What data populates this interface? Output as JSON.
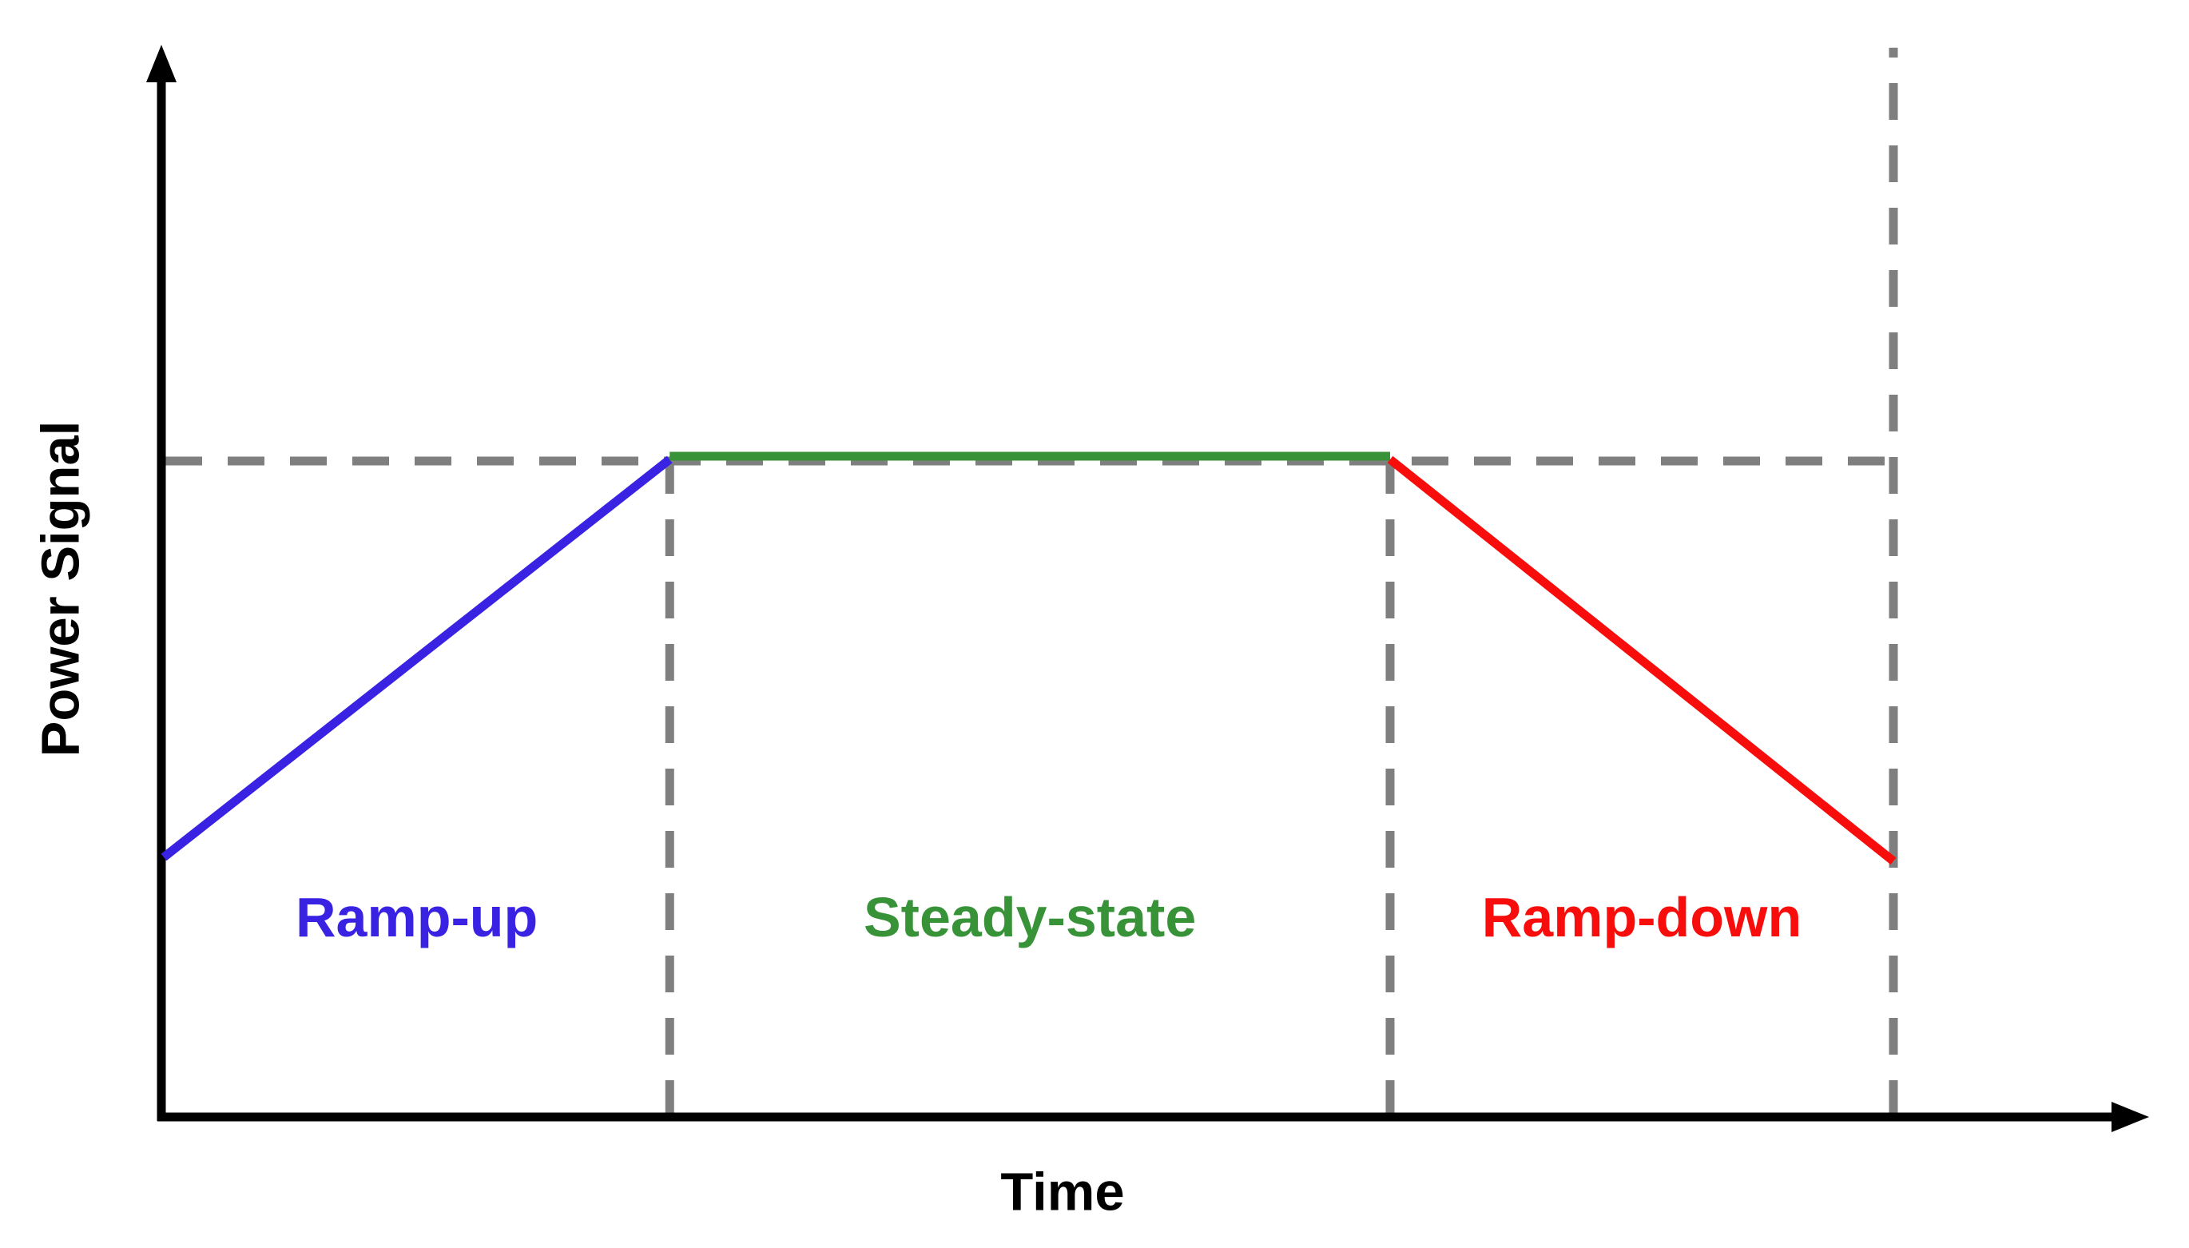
{
  "chart_data": {
    "type": "line",
    "title": "",
    "xlabel": "Time",
    "ylabel": "Power Signal",
    "axis_color": "#000000",
    "guide_color": "#7f7f7f",
    "guide_style": "dashed",
    "tick_labels": "none",
    "background": "#ffffff",
    "axes": {
      "x_arrow": true,
      "y_arrow": true
    },
    "phases": [
      {
        "label": "Ramp-up",
        "color": "#3a22e3",
        "trend": "linear increase",
        "x": [
          0.0,
          0.2925
        ],
        "power": [
          0.395,
          1.0
        ]
      },
      {
        "label": "Steady-state",
        "color": "#389238",
        "trend": "constant",
        "x": [
          0.2925,
          0.709
        ],
        "power": [
          1.0,
          1.0
        ]
      },
      {
        "label": "Ramp-down",
        "color": "#f80d0d",
        "trend": "linear decrease",
        "x": [
          0.709,
          1.0
        ],
        "power": [
          1.0,
          0.389
        ]
      }
    ],
    "guides": [
      {
        "kind": "horizontal",
        "name": "steady-level",
        "power": 1.0,
        "x": [
          0.0,
          1.0
        ]
      },
      {
        "kind": "vertical",
        "name": "ramp-up-end",
        "x": 0.2925,
        "power": [
          0.0,
          1.0
        ]
      },
      {
        "kind": "vertical",
        "name": "steady-end",
        "x": 0.709,
        "power": [
          0.0,
          1.0
        ]
      },
      {
        "kind": "vertical",
        "name": "signal-end",
        "x": 1.0,
        "power": [
          0.0,
          1.626
        ]
      }
    ]
  }
}
